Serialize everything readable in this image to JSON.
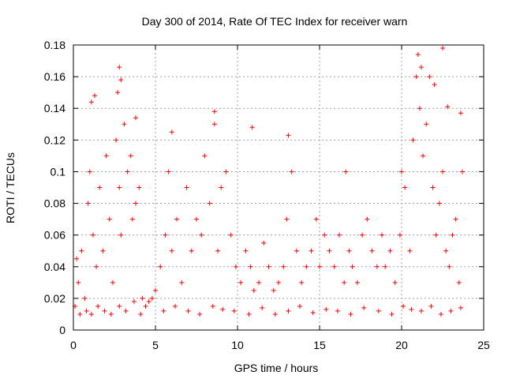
{
  "chart_data": {
    "type": "scatter",
    "title": "Day 300 of 2014, Rate Of TEC Index for receiver warn",
    "xlabel": "GPS time / hours",
    "ylabel": "ROTI / TECUs",
    "xlim": [
      0,
      25
    ],
    "ylim": [
      0,
      0.18
    ],
    "xticks": [
      "0",
      "5",
      "10",
      "15",
      "20",
      "25"
    ],
    "yticks": [
      "0",
      "0.02",
      "0.04",
      "0.06",
      "0.08",
      "0.1",
      "0.12",
      "0.14",
      "0.16",
      "0.18"
    ],
    "grid": true,
    "legend": "none",
    "marker": "+",
    "color": "#ff0000",
    "series": [
      {
        "x": [
          0.1,
          0.2,
          0.3,
          0.5,
          0.7,
          0.9,
          1.0,
          1.2,
          1.4,
          1.6,
          1.8,
          2.0,
          2.2,
          2.4,
          2.6,
          2.7,
          2.8,
          2.9,
          3.1,
          3.3,
          3.5,
          3.6,
          3.8,
          4.0,
          4.2,
          4.4,
          4.6,
          4.8,
          5.0,
          5.3,
          5.6,
          5.8,
          6.0,
          6.3,
          6.6,
          6.9,
          7.2,
          7.5,
          7.8,
          8.0,
          8.3,
          8.6,
          8.8,
          9.0,
          9.3,
          9.6,
          9.9,
          10.2,
          10.5,
          10.8,
          11.0,
          11.3,
          11.6,
          11.9,
          12.2,
          12.5,
          12.8,
          13.0,
          13.3,
          13.6,
          13.9,
          14.2,
          14.5,
          14.8,
          15.0,
          15.3,
          15.6,
          15.9,
          16.2,
          16.5,
          16.8,
          17.0,
          17.3,
          17.6,
          17.9,
          18.2,
          18.5,
          18.8,
          19.0,
          19.3,
          19.6,
          19.9,
          20.2,
          20.5,
          20.7,
          20.9,
          21.1,
          21.3,
          21.5,
          21.7,
          21.9,
          22.1,
          22.3,
          22.5,
          22.7,
          22.9,
          23.1,
          23.3,
          23.5,
          23.7,
          0.4,
          0.8,
          1.1,
          1.5,
          1.9,
          2.3,
          2.8,
          3.2,
          3.7,
          4.1,
          5.5,
          6.2,
          7.0,
          7.7,
          8.5,
          9.1,
          9.8,
          10.7,
          11.5,
          12.3,
          13.1,
          13.8,
          14.6,
          15.4,
          16.1,
          16.9,
          17.7,
          18.6,
          19.4,
          20.1,
          20.6,
          21.2,
          21.8,
          22.4,
          23.0,
          23.6,
          2.8,
          2.9,
          21.0,
          21.2,
          22.0,
          22.5,
          1.3,
          1.1,
          3.8,
          8.6,
          13.1,
          16.6,
          20.0,
          22.8,
          23.6,
          10.9,
          6.0
        ],
        "y": [
          0.015,
          0.045,
          0.03,
          0.05,
          0.02,
          0.08,
          0.1,
          0.06,
          0.04,
          0.09,
          0.05,
          0.11,
          0.07,
          0.03,
          0.12,
          0.15,
          0.09,
          0.06,
          0.13,
          0.1,
          0.11,
          0.07,
          0.08,
          0.09,
          0.02,
          0.015,
          0.018,
          0.02,
          0.025,
          0.04,
          0.06,
          0.1,
          0.05,
          0.07,
          0.03,
          0.09,
          0.05,
          0.07,
          0.06,
          0.11,
          0.08,
          0.13,
          0.05,
          0.09,
          0.1,
          0.06,
          0.04,
          0.03,
          0.05,
          0.04,
          0.025,
          0.03,
          0.055,
          0.04,
          0.025,
          0.03,
          0.04,
          0.07,
          0.1,
          0.05,
          0.03,
          0.04,
          0.05,
          0.07,
          0.04,
          0.06,
          0.05,
          0.04,
          0.06,
          0.03,
          0.05,
          0.04,
          0.03,
          0.06,
          0.07,
          0.05,
          0.04,
          0.06,
          0.04,
          0.05,
          0.03,
          0.06,
          0.09,
          0.05,
          0.12,
          0.16,
          0.14,
          0.11,
          0.13,
          0.16,
          0.09,
          0.06,
          0.08,
          0.1,
          0.05,
          0.04,
          0.06,
          0.07,
          0.03,
          0.1,
          0.01,
          0.012,
          0.01,
          0.015,
          0.012,
          0.01,
          0.015,
          0.012,
          0.018,
          0.01,
          0.012,
          0.015,
          0.012,
          0.01,
          0.015,
          0.013,
          0.012,
          0.01,
          0.014,
          0.01,
          0.012,
          0.015,
          0.011,
          0.013,
          0.012,
          0.01,
          0.014,
          0.012,
          0.01,
          0.015,
          0.013,
          0.012,
          0.015,
          0.01,
          0.012,
          0.014,
          0.166,
          0.158,
          0.174,
          0.166,
          0.155,
          0.178,
          0.148,
          0.144,
          0.134,
          0.138,
          0.123,
          0.1,
          0.1,
          0.141,
          0.137,
          0.128,
          0.125
        ]
      }
    ]
  }
}
